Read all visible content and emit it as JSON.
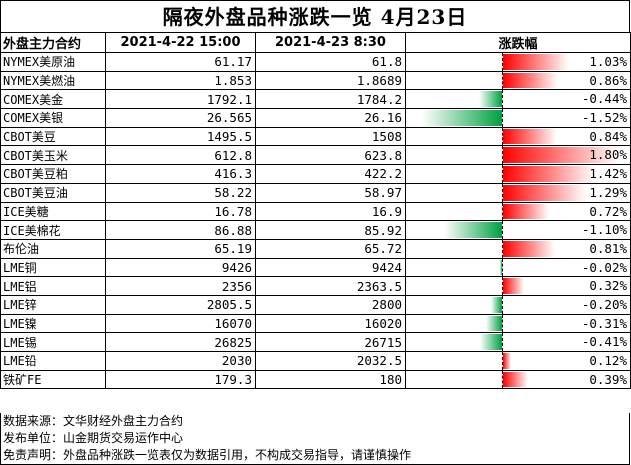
{
  "title": "隔夜外盘品种涨跌一览 4月23日",
  "headers": {
    "name": "外盘主力合约",
    "prev": "2021-4-22 15:00",
    "curr": "2021-4-23 8:30",
    "change": "涨跌幅"
  },
  "rows": [
    {
      "name": "NYMEX美原油",
      "prev": "61.17",
      "curr": "61.8",
      "change": "1.03%",
      "value": 1.03
    },
    {
      "name": "NYMEX美燃油",
      "prev": "1.853",
      "curr": "1.8689",
      "change": "0.86%",
      "value": 0.86
    },
    {
      "name": "COMEX美金",
      "prev": "1792.1",
      "curr": "1784.2",
      "change": "-0.44%",
      "value": -0.44
    },
    {
      "name": "COMEX美银",
      "prev": "26.565",
      "curr": "26.16",
      "change": "-1.52%",
      "value": -1.52
    },
    {
      "name": "CBOT美豆",
      "prev": "1495.5",
      "curr": "1508",
      "change": "0.84%",
      "value": 0.84
    },
    {
      "name": "CBOT美玉米",
      "prev": "612.8",
      "curr": "623.8",
      "change": "1.80%",
      "value": 1.8
    },
    {
      "name": "CBOT美豆粕",
      "prev": "416.3",
      "curr": "422.2",
      "change": "1.42%",
      "value": 1.42
    },
    {
      "name": "CBOT美豆油",
      "prev": "58.22",
      "curr": "58.97",
      "change": "1.29%",
      "value": 1.29
    },
    {
      "name": "ICE美糖",
      "prev": "16.78",
      "curr": "16.9",
      "change": "0.72%",
      "value": 0.72
    },
    {
      "name": "ICE美棉花",
      "prev": "86.88",
      "curr": "85.92",
      "change": "-1.10%",
      "value": -1.1
    },
    {
      "name": "布伦油",
      "prev": "65.19",
      "curr": "65.72",
      "change": "0.81%",
      "value": 0.81
    },
    {
      "name": "LME铜",
      "prev": "9426",
      "curr": "9424",
      "change": "-0.02%",
      "value": -0.02
    },
    {
      "name": "LME铝",
      "prev": "2356",
      "curr": "2363.5",
      "change": "0.32%",
      "value": 0.32
    },
    {
      "name": "LME锌",
      "prev": "2805.5",
      "curr": "2800",
      "change": "-0.20%",
      "value": -0.2
    },
    {
      "name": "LME镍",
      "prev": "16070",
      "curr": "16020",
      "change": "-0.31%",
      "value": -0.31
    },
    {
      "name": "LME锡",
      "prev": "26825",
      "curr": "26715",
      "change": "-0.41%",
      "value": -0.41
    },
    {
      "name": "LME铅",
      "prev": "2030",
      "curr": "2032.5",
      "change": "0.12%",
      "value": 0.12
    },
    {
      "name": "铁矿FE",
      "prev": "179.3",
      "curr": "180",
      "change": "0.39%",
      "value": 0.39
    }
  ],
  "colors": {
    "up": "#ff0000",
    "down": "#00a040"
  },
  "footer": {
    "source": "数据来源：文华财经外盘主力合约",
    "publisher": "发布单位：山金期货交易运作中心",
    "disclaimer": "免责声明：外盘品种涨跌一览表仅为数据引用，不构成交易指导，请谨慎操作"
  }
}
